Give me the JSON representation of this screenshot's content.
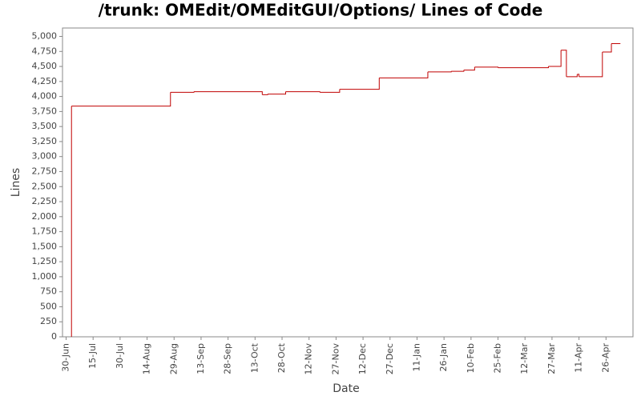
{
  "chart_data": {
    "type": "step",
    "title": "/trunk: OMEdit/OMEditGUI/Options/ Lines of Code",
    "x_label": "Date",
    "y_label": "Lines",
    "x": [
      "3-Jul",
      "3-Jul",
      "27-Aug",
      "9-Sep",
      "17-Oct",
      "20-Oct",
      "30-Oct",
      "18-Nov",
      "29-Nov",
      "21-Dec",
      "17-Jan",
      "30-Jan",
      "6-Feb",
      "12-Feb",
      "25-Feb",
      "25-Mar",
      "1-Apr",
      "4-Apr",
      "10-Apr",
      "11-Apr",
      "24-Apr",
      "29-Apr",
      "4-May"
    ],
    "series": [
      {
        "name": "Lines",
        "color": "#c00000",
        "values": [
          0,
          3840,
          4070,
          4080,
          4030,
          4040,
          4080,
          4070,
          4120,
          4310,
          4410,
          4420,
          4440,
          4490,
          4480,
          4500,
          4770,
          4330,
          4370,
          4330,
          4740,
          4880,
          4880
        ]
      }
    ],
    "xlim": [
      "28-Jun",
      "11-May"
    ],
    "xticks": [
      "30-Jun",
      "15-Jul",
      "30-Jul",
      "14-Aug",
      "29-Aug",
      "13-Sep",
      "28-Sep",
      "13-Oct",
      "28-Oct",
      "12-Nov",
      "27-Nov",
      "12-Dec",
      "27-Dec",
      "11-Jan",
      "26-Jan",
      "10-Feb",
      "25-Feb",
      "12-Mar",
      "27-Mar",
      "11-Apr",
      "26-Apr"
    ],
    "ylim": [
      0,
      5140
    ],
    "yticks": [
      0,
      250,
      500,
      750,
      {
        "value": 1000,
        "label": "1,000"
      },
      {
        "value": 1250,
        "label": "1,250"
      },
      {
        "value": 1500,
        "label": "1,500"
      },
      {
        "value": 1750,
        "label": "1,750"
      },
      {
        "value": 2000,
        "label": "2,000"
      },
      {
        "value": 2250,
        "label": "2,250"
      },
      {
        "value": 2500,
        "label": "2,500"
      },
      {
        "value": 2750,
        "label": "2,750"
      },
      {
        "value": 3000,
        "label": "3,000"
      },
      {
        "value": 3250,
        "label": "3,250"
      },
      {
        "value": 3500,
        "label": "3,500"
      },
      {
        "value": 3750,
        "label": "3,750"
      },
      {
        "value": 4000,
        "label": "4,000"
      },
      {
        "value": 4250,
        "label": "4,250"
      },
      {
        "value": 4500,
        "label": "4,500"
      },
      {
        "value": 4750,
        "label": "4,750"
      },
      {
        "value": 5000,
        "label": "5,000"
      }
    ]
  }
}
